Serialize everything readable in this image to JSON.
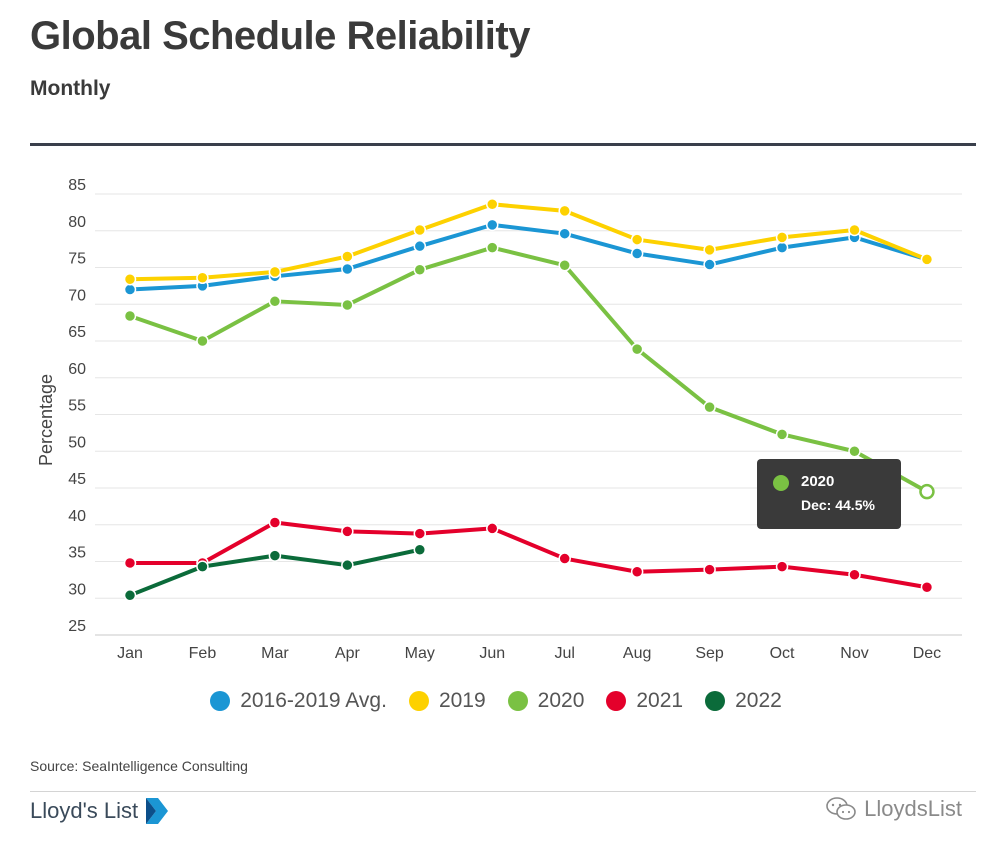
{
  "header": {
    "title": "Global Schedule Reliability",
    "subtitle": "Monthly"
  },
  "tooltip": {
    "series": "2020",
    "value_text": "Dec: 44.5%"
  },
  "footer": {
    "source": "Source: SeaIntelligence Consulting",
    "brand": "Lloyd's List",
    "watermark": "LloydsList"
  },
  "colors": {
    "avg": "#1b96d4",
    "y2019": "#fdd100",
    "y2020": "#7ac143",
    "y2021": "#e4002b",
    "y2022": "#0b6b3a",
    "tooltip_bg": "#3a3a3a",
    "rule": "#3a3f4b"
  },
  "chart_data": {
    "type": "line",
    "title": "Global Schedule Reliability",
    "subtitle": "Monthly",
    "xlabel": "",
    "ylabel": "Percentage",
    "ylim": [
      25,
      85
    ],
    "yticks": [
      25,
      30,
      35,
      40,
      45,
      50,
      55,
      60,
      65,
      70,
      75,
      80,
      85
    ],
    "grid": true,
    "legend_position": "bottom",
    "categories": [
      "Jan",
      "Feb",
      "Mar",
      "Apr",
      "May",
      "Jun",
      "Jul",
      "Aug",
      "Sep",
      "Oct",
      "Nov",
      "Dec"
    ],
    "series": [
      {
        "name": "2016-2019 Avg.",
        "color": "#1b96d4",
        "values": [
          72.0,
          72.5,
          73.8,
          74.8,
          77.9,
          80.8,
          79.6,
          76.9,
          75.4,
          77.7,
          79.1,
          76.1
        ]
      },
      {
        "name": "2019",
        "color": "#fdd100",
        "values": [
          73.4,
          73.6,
          74.4,
          76.5,
          80.1,
          83.6,
          82.7,
          78.8,
          77.4,
          79.1,
          80.1,
          76.1
        ]
      },
      {
        "name": "2020",
        "color": "#7ac143",
        "values": [
          68.4,
          65.0,
          70.4,
          69.9,
          74.7,
          77.7,
          75.3,
          63.9,
          56.0,
          52.3,
          50.0,
          44.5
        ]
      },
      {
        "name": "2021",
        "color": "#e4002b",
        "values": [
          34.8,
          34.8,
          40.3,
          39.1,
          38.8,
          39.5,
          35.4,
          33.6,
          33.9,
          34.3,
          33.2,
          31.5
        ]
      },
      {
        "name": "2022",
        "color": "#0b6b3a",
        "values": [
          30.4,
          34.3,
          35.8,
          34.5,
          36.6,
          null,
          null,
          null,
          null,
          null,
          null,
          null
        ]
      }
    ],
    "highlight": {
      "series": "2020",
      "category": "Dec",
      "value": 44.5
    }
  }
}
